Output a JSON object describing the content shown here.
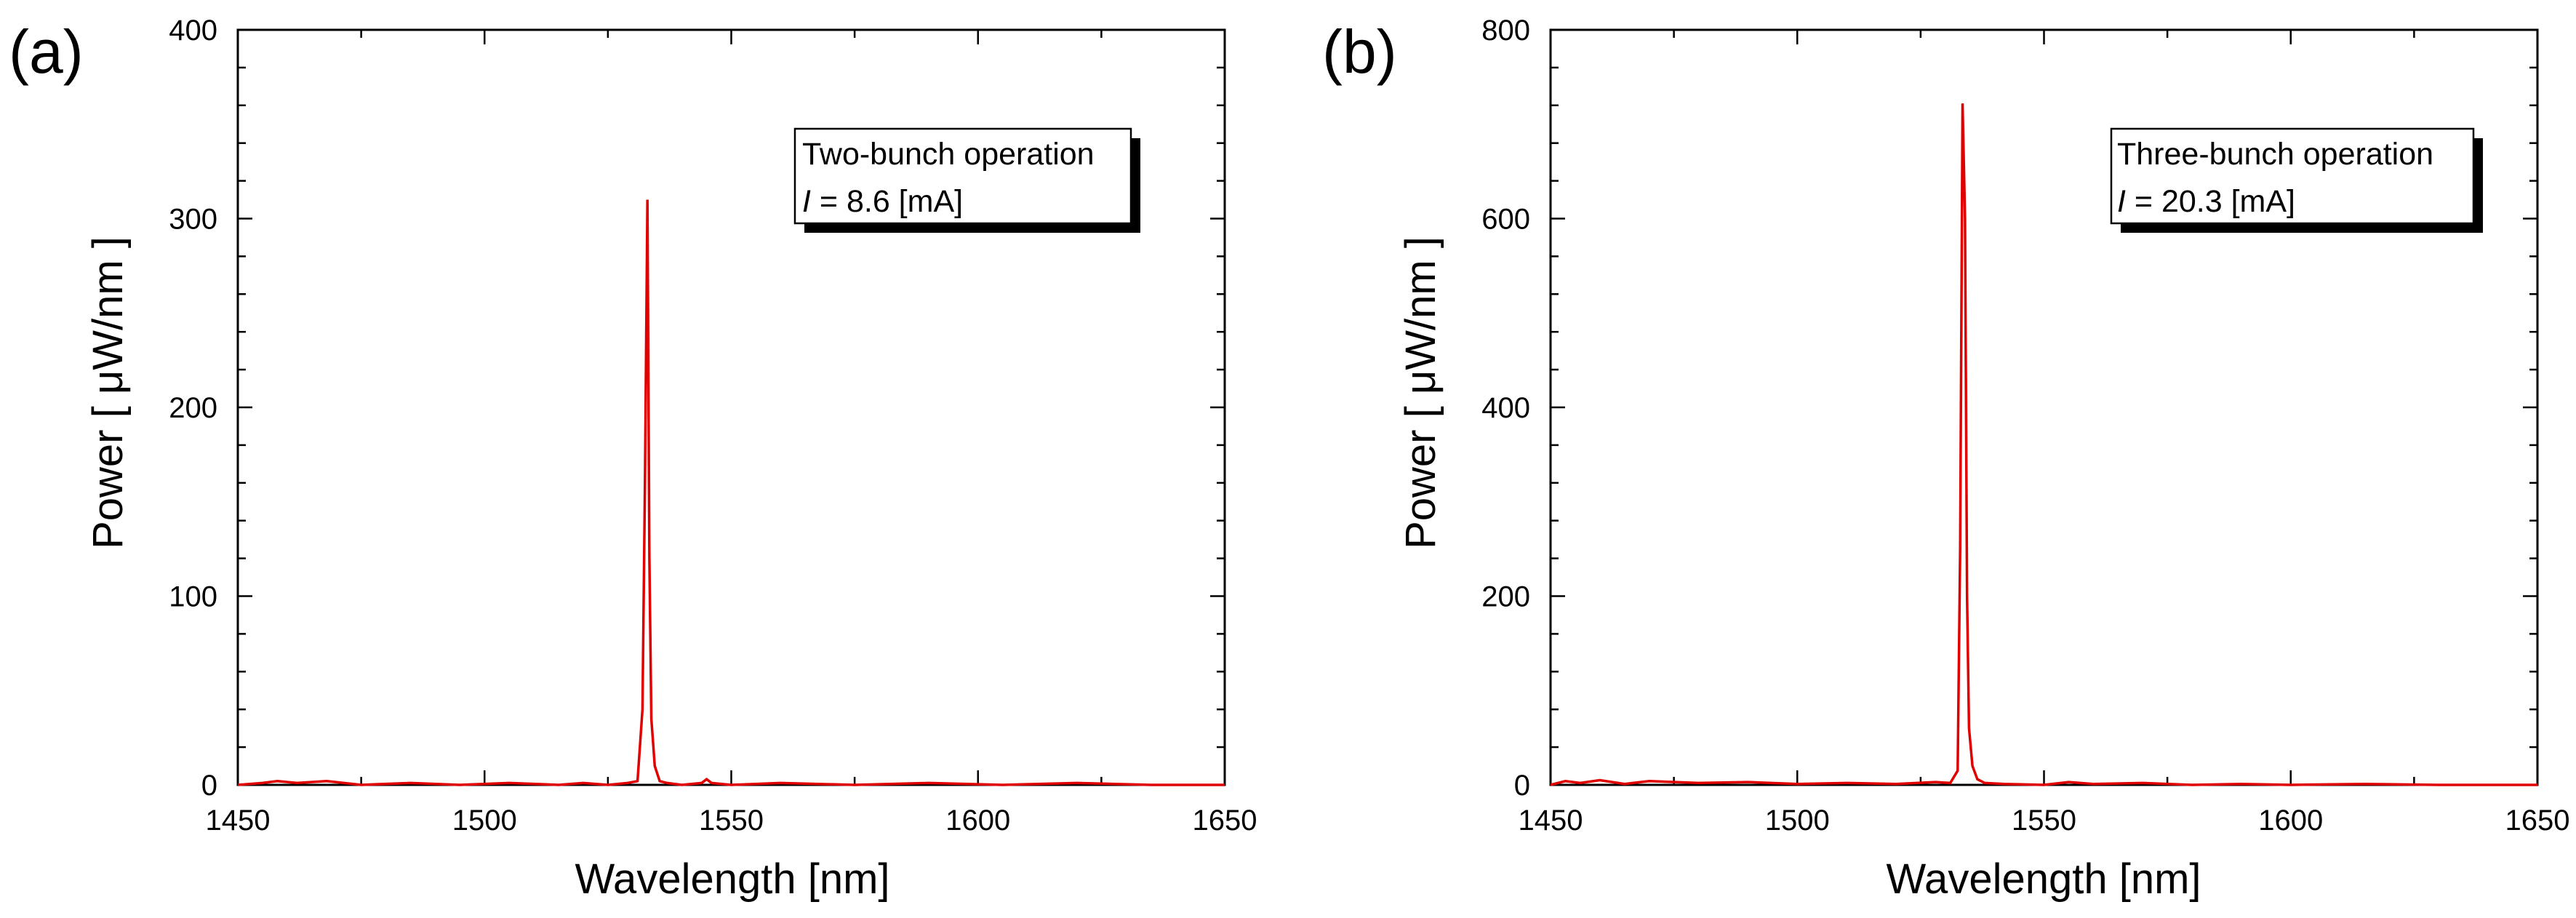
{
  "chart_data": [
    {
      "type": "line",
      "panel_label": "(a)",
      "xlabel": "Wavelength [nm]",
      "ylabel": "Power [ μW/nm ]",
      "xlim": [
        1450,
        1650
      ],
      "ylim": [
        0,
        400
      ],
      "xticks": [
        1450,
        1500,
        1550,
        1600,
        1650
      ],
      "yticks": [
        0,
        100,
        200,
        300,
        400
      ],
      "legend_title": "Two-bunch operation",
      "legend_var": "I",
      "legend_value": " = 8.6 [mA]",
      "legend_position": "top-right",
      "line_color": "#e00000",
      "series": [
        {
          "name": "spectrum",
          "x": [
            1450,
            1455,
            1458,
            1462,
            1468,
            1475,
            1485,
            1495,
            1505,
            1515,
            1520,
            1525,
            1529,
            1531,
            1532,
            1532.5,
            1533,
            1533.4,
            1533.8,
            1534.5,
            1535.5,
            1537,
            1540,
            1544,
            1545,
            1546,
            1550,
            1560,
            1575,
            1590,
            1605,
            1620,
            1635,
            1650
          ],
          "y": [
            0,
            1,
            2,
            1,
            2,
            0,
            1,
            0,
            1,
            0,
            1,
            0,
            1,
            2,
            40,
            160,
            310,
            120,
            35,
            10,
            2,
            1,
            0,
            1,
            3,
            1,
            0,
            1,
            0,
            1,
            0,
            1,
            0,
            0
          ]
        }
      ]
    },
    {
      "type": "line",
      "panel_label": "(b)",
      "xlabel": "Wavelength [nm]",
      "ylabel": "Power [ μW/nm ]",
      "xlim": [
        1450,
        1650
      ],
      "ylim": [
        0,
        800
      ],
      "xticks": [
        1450,
        1500,
        1550,
        1600,
        1650
      ],
      "yticks": [
        0,
        200,
        400,
        600,
        800
      ],
      "legend_title": "Three-bunch operation",
      "legend_var": "I",
      "legend_value": " = 20.3 [mA]",
      "legend_position": "top-right",
      "line_color": "#e00000",
      "series": [
        {
          "name": "spectrum",
          "x": [
            1450,
            1453,
            1456,
            1460,
            1465,
            1470,
            1480,
            1490,
            1500,
            1510,
            1520,
            1528,
            1531,
            1532.5,
            1533,
            1533.5,
            1534,
            1534.4,
            1534.8,
            1535.5,
            1536.5,
            1538,
            1542,
            1550,
            1555,
            1560,
            1570,
            1580,
            1590,
            1600,
            1615,
            1630,
            1650
          ],
          "y": [
            0,
            4,
            2,
            5,
            1,
            4,
            2,
            3,
            1,
            2,
            1,
            3,
            2,
            15,
            250,
            722,
            600,
            200,
            60,
            20,
            6,
            2,
            1,
            0,
            3,
            1,
            2,
            0,
            1,
            0,
            1,
            0,
            0
          ]
        }
      ]
    }
  ]
}
